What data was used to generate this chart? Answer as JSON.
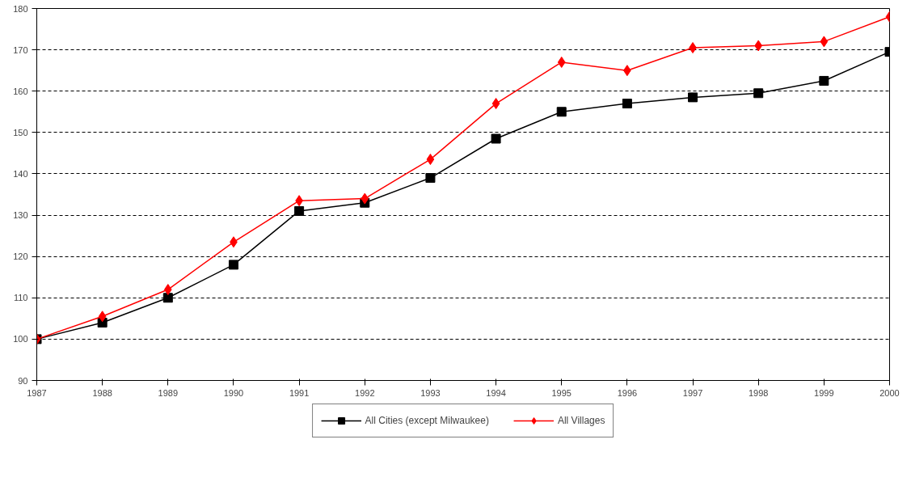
{
  "chart_data": {
    "type": "line",
    "x": [
      1987,
      1988,
      1989,
      1990,
      1991,
      1992,
      1993,
      1994,
      1995,
      1996,
      1997,
      1998,
      1999,
      2000
    ],
    "series": [
      {
        "name": "All Cities (except Milwaukee)",
        "color": "#000000",
        "marker": "square",
        "values": [
          100,
          104,
          110,
          118,
          131,
          133,
          139,
          148.5,
          155,
          157,
          158.5,
          159.5,
          162.5,
          169.5
        ]
      },
      {
        "name": "All Villages",
        "color": "#ff0000",
        "marker": "diamond",
        "values": [
          100,
          105.5,
          112,
          123.5,
          133.5,
          134,
          143.5,
          157,
          167,
          165,
          170.5,
          171,
          172,
          178
        ]
      }
    ],
    "xlim": [
      1987,
      2000
    ],
    "xticks": [
      1987,
      1988,
      1989,
      1990,
      1991,
      1992,
      1993,
      1994,
      1995,
      1996,
      1997,
      1998,
      1999,
      2000
    ],
    "ylim": [
      90,
      180
    ],
    "yticks": [
      90,
      100,
      110,
      120,
      130,
      140,
      150,
      160,
      170,
      180
    ],
    "grid": "y",
    "line_style": "solid",
    "legend": "bottom"
  }
}
